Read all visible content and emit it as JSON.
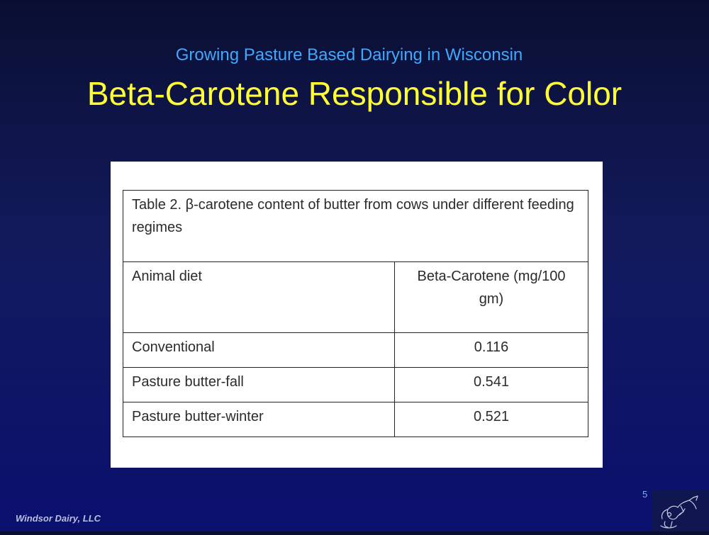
{
  "slide": {
    "subtitle": "Growing Pasture Based Dairying in Wisconsin",
    "title": "Beta-Carotene Responsible for Color",
    "page_number": "5",
    "footer": "Windsor Dairy, LLC",
    "colors": {
      "background": "#0e1566",
      "subtitle": "#3fa9ff",
      "title": "#ffff33"
    }
  },
  "table": {
    "caption": "Table 2.  β-carotene content of butter from cows under different feeding regimes",
    "headers": [
      "Animal diet",
      "Beta-Carotene (mg/100 gm)"
    ],
    "rows": [
      [
        "Conventional",
        "0.116"
      ],
      [
        "Pasture butter-fall",
        "0.541"
      ],
      [
        "Pasture butter-winter",
        "0.521"
      ]
    ]
  },
  "logo": {
    "icon": "cow-sketch-icon"
  }
}
